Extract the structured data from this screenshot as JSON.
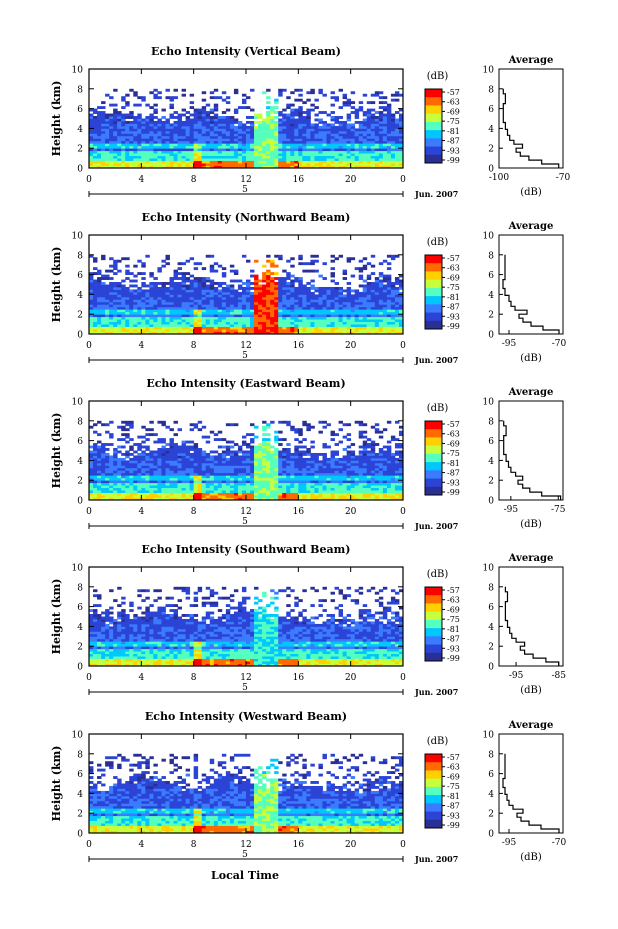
{
  "chart_data": {
    "type": "heatmap",
    "xlabel": "Local Time",
    "x_ticks": [
      "0",
      "4",
      "8",
      "12",
      "16",
      "20",
      "0"
    ],
    "xlim": [
      0,
      24
    ],
    "date_marker": "5",
    "date_label": "Jun. 2007",
    "colorbar": {
      "unit_label": "(dB)",
      "ticks": [
        "-57",
        "-63",
        "-69",
        "-75",
        "-81",
        "-87",
        "-93",
        "-99"
      ],
      "colors": [
        "#ff0000",
        "#ff6a00",
        "#ffd000",
        "#c8ff3c",
        "#55ffbf",
        "#00c8ff",
        "#3b7bff",
        "#2c44d6",
        "#2a2f96"
      ]
    },
    "panels": [
      {
        "title": "Echo Intensity (Vertical Beam)",
        "ylabel": "Height (km)",
        "y_ticks": [
          "0",
          "2",
          "4",
          "6",
          "8",
          "10"
        ],
        "ylim": [
          0,
          10
        ],
        "avg_title": "Average",
        "avg_xlabel": "(dB)",
        "avg_x_ticks": [
          "-100",
          "-70"
        ],
        "avg_xlim": [
          -100,
          -70
        ],
        "average_profile": [
          {
            "height": 0.2,
            "db": -72
          },
          {
            "height": 0.6,
            "db": -80
          },
          {
            "height": 1.0,
            "db": -86
          },
          {
            "height": 1.4,
            "db": -90
          },
          {
            "height": 1.8,
            "db": -92
          },
          {
            "height": 2.2,
            "db": -89
          },
          {
            "height": 2.6,
            "db": -93
          },
          {
            "height": 3.0,
            "db": -95
          },
          {
            "height": 3.6,
            "db": -96
          },
          {
            "height": 4.2,
            "db": -97
          },
          {
            "height": 5.0,
            "db": -98
          },
          {
            "height": 6.0,
            "db": -98
          },
          {
            "height": 7.0,
            "db": -97
          },
          {
            "height": 8.0,
            "db": -98
          }
        ]
      },
      {
        "title": "Echo Intensity (Northward Beam)",
        "ylabel": "Height (km)",
        "y_ticks": [
          "0",
          "2",
          "4",
          "6",
          "8",
          "10"
        ],
        "ylim": [
          0,
          10
        ],
        "avg_title": "Average",
        "avg_xlabel": "(dB)",
        "avg_x_ticks": [
          "-95",
          "-70"
        ],
        "avg_xlim": [
          -100,
          -68
        ],
        "average_profile": [
          {
            "height": 0.2,
            "db": -70
          },
          {
            "height": 0.6,
            "db": -78
          },
          {
            "height": 1.0,
            "db": -84
          },
          {
            "height": 1.4,
            "db": -88
          },
          {
            "height": 1.8,
            "db": -90
          },
          {
            "height": 2.2,
            "db": -86
          },
          {
            "height": 2.6,
            "db": -92
          },
          {
            "height": 3.0,
            "db": -94
          },
          {
            "height": 3.6,
            "db": -95
          },
          {
            "height": 4.2,
            "db": -97
          },
          {
            "height": 5.0,
            "db": -98
          },
          {
            "height": 6.0,
            "db": -97
          },
          {
            "height": 7.0,
            "db": -97
          },
          {
            "height": 8.0,
            "db": -97
          }
        ]
      },
      {
        "title": "Echo Intensity (Eastward Beam)",
        "ylabel": "Height (km)",
        "y_ticks": [
          "0",
          "2",
          "4",
          "6",
          "8",
          "10"
        ],
        "ylim": [
          0,
          10
        ],
        "avg_title": "Average",
        "avg_xlabel": "(dB)",
        "avg_x_ticks": [
          "-95",
          "-75"
        ],
        "avg_xlim": [
          -100,
          -73
        ],
        "average_profile": [
          {
            "height": 0.2,
            "db": -74
          },
          {
            "height": 0.6,
            "db": -82
          },
          {
            "height": 1.0,
            "db": -87
          },
          {
            "height": 1.4,
            "db": -90
          },
          {
            "height": 1.8,
            "db": -92
          },
          {
            "height": 2.2,
            "db": -90
          },
          {
            "height": 2.6,
            "db": -93
          },
          {
            "height": 3.0,
            "db": -95
          },
          {
            "height": 3.6,
            "db": -96
          },
          {
            "height": 4.2,
            "db": -97
          },
          {
            "height": 5.0,
            "db": -98
          },
          {
            "height": 6.0,
            "db": -98
          },
          {
            "height": 7.0,
            "db": -97
          },
          {
            "height": 8.0,
            "db": -98
          }
        ]
      },
      {
        "title": "Echo Intensity (Southward Beam)",
        "ylabel": "Height (km)",
        "y_ticks": [
          "0",
          "2",
          "4",
          "6",
          "8",
          "10"
        ],
        "ylim": [
          0,
          10
        ],
        "avg_title": "Average",
        "avg_xlabel": "(dB)",
        "avg_x_ticks": [
          "-95",
          "-85"
        ],
        "avg_xlim": [
          -99,
          -84
        ],
        "average_profile": [
          {
            "height": 0.2,
            "db": -85
          },
          {
            "height": 0.6,
            "db": -88
          },
          {
            "height": 1.0,
            "db": -91
          },
          {
            "height": 1.4,
            "db": -93
          },
          {
            "height": 1.8,
            "db": -94
          },
          {
            "height": 2.2,
            "db": -93
          },
          {
            "height": 2.6,
            "db": -95
          },
          {
            "height": 3.0,
            "db": -96
          },
          {
            "height": 3.6,
            "db": -96.5
          },
          {
            "height": 4.2,
            "db": -97
          },
          {
            "height": 5.0,
            "db": -97.5
          },
          {
            "height": 6.0,
            "db": -97.5
          },
          {
            "height": 7.0,
            "db": -97
          },
          {
            "height": 8.0,
            "db": -97.5
          }
        ]
      },
      {
        "title": "Echo Intensity (Westward Beam)",
        "ylabel": "Height (km)",
        "y_ticks": [
          "0",
          "2",
          "4",
          "6",
          "8",
          "10"
        ],
        "ylim": [
          0,
          10
        ],
        "avg_title": "Average",
        "avg_xlabel": "(dB)",
        "avg_x_ticks": [
          "-95",
          "-70"
        ],
        "avg_xlim": [
          -100,
          -68
        ],
        "average_profile": [
          {
            "height": 0.2,
            "db": -70
          },
          {
            "height": 0.6,
            "db": -79
          },
          {
            "height": 1.0,
            "db": -85
          },
          {
            "height": 1.4,
            "db": -89
          },
          {
            "height": 1.8,
            "db": -91
          },
          {
            "height": 2.2,
            "db": -88
          },
          {
            "height": 2.6,
            "db": -93
          },
          {
            "height": 3.0,
            "db": -95
          },
          {
            "height": 3.6,
            "db": -96
          },
          {
            "height": 4.2,
            "db": -97
          },
          {
            "height": 5.0,
            "db": -98
          },
          {
            "height": 6.0,
            "db": -97
          },
          {
            "height": 7.0,
            "db": -97
          },
          {
            "height": 8.0,
            "db": -97
          }
        ]
      }
    ]
  }
}
